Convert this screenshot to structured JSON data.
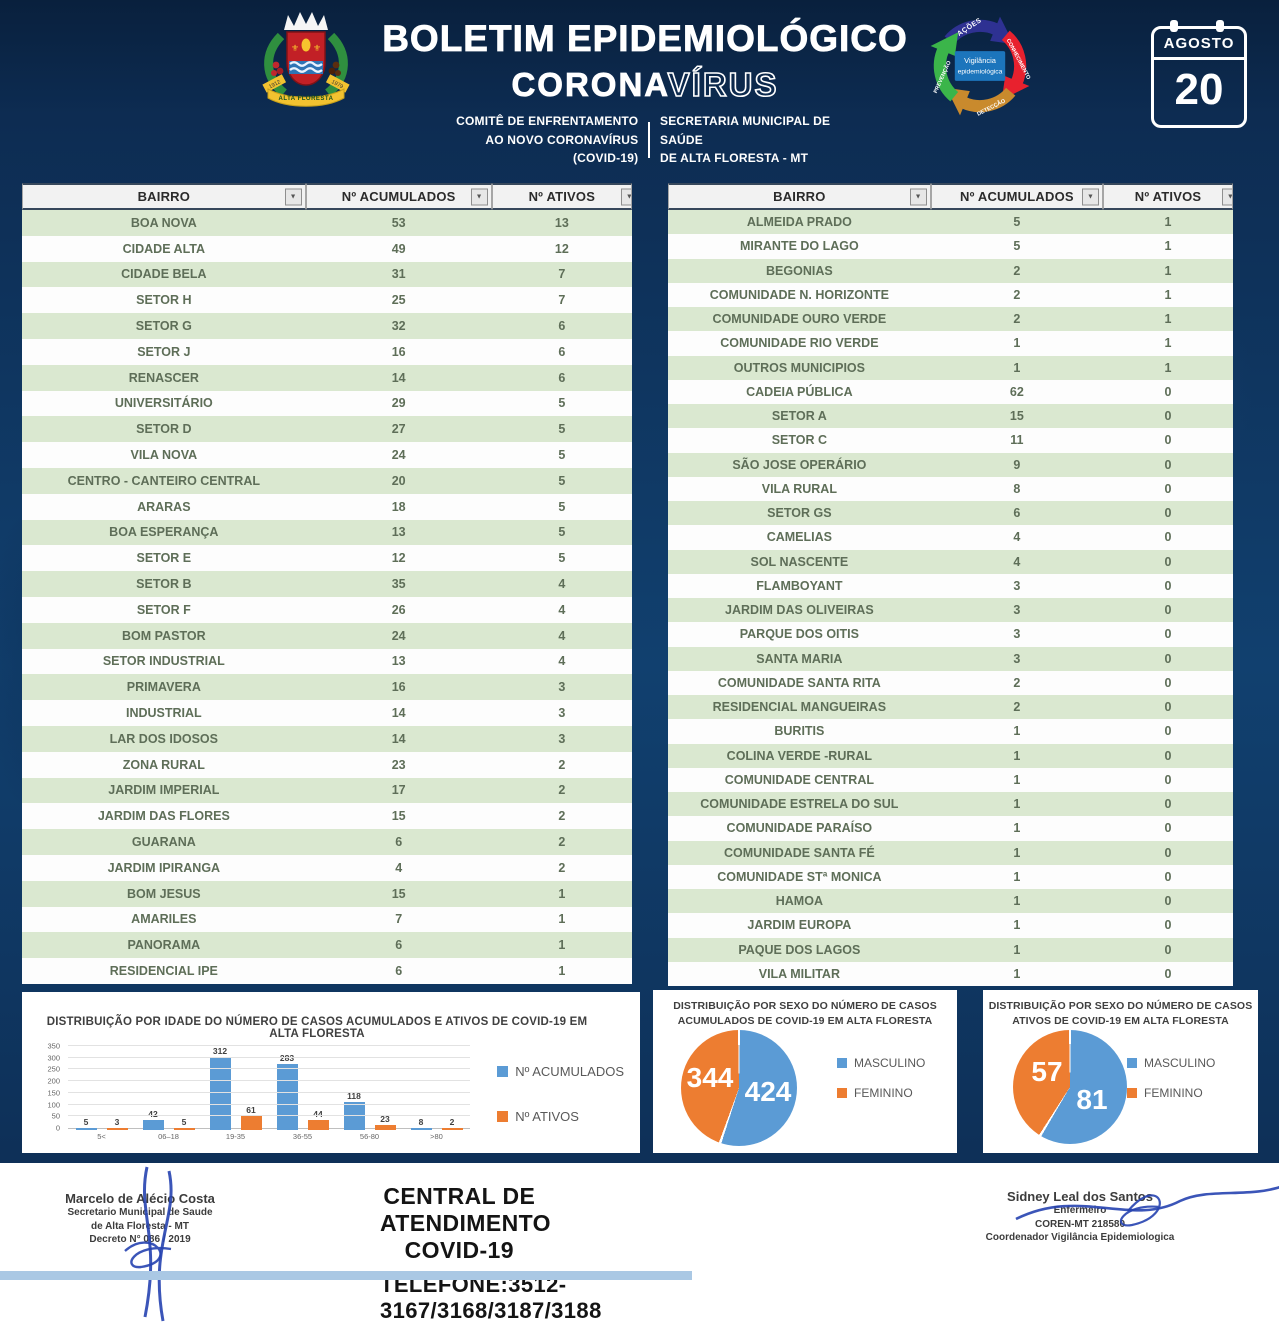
{
  "header": {
    "title": "BOLETIM EPIDEMIOLÓGICO",
    "subtitle_solid": "CORONA",
    "subtitle_outline": "VÍRUS",
    "committee_line1": "COMITÊ DE ENFRENTAMENTO",
    "committee_line2": "AO NOVO CORONAVÍRUS (COVID-19)",
    "secretary_line1": "SECRETARIA MUNICIPAL DE SAÚDE",
    "secretary_line2": "DE ALTA FLORESTA - MT",
    "calendar_month": "AGOSTO",
    "calendar_day": "20",
    "cycle_center_line1": "Vigilância",
    "cycle_center_line2": "epidemiológica",
    "cycle_labels": [
      "AÇÕES",
      "CONHECIMENTO",
      "DETECÇÃO",
      "PREVENÇÃO"
    ],
    "crest_name": "ALTA FLORESTA",
    "crest_year_left": "1912",
    "crest_year_right": "1979"
  },
  "tables": {
    "headers": [
      "BAIRRO",
      "Nº ACUMULADOS",
      "Nº ATIVOS"
    ],
    "left": [
      [
        "BOA NOVA",
        "53",
        "13"
      ],
      [
        "CIDADE ALTA",
        "49",
        "12"
      ],
      [
        "CIDADE BELA",
        "31",
        "7"
      ],
      [
        "SETOR H",
        "25",
        "7"
      ],
      [
        "SETOR G",
        "32",
        "6"
      ],
      [
        "SETOR J",
        "16",
        "6"
      ],
      [
        "RENASCER",
        "14",
        "6"
      ],
      [
        "UNIVERSITÁRIO",
        "29",
        "5"
      ],
      [
        "SETOR D",
        "27",
        "5"
      ],
      [
        "VILA NOVA",
        "24",
        "5"
      ],
      [
        "CENTRO - CANTEIRO CENTRAL",
        "20",
        "5"
      ],
      [
        "ARARAS",
        "18",
        "5"
      ],
      [
        "BOA ESPERANÇA",
        "13",
        "5"
      ],
      [
        "SETOR E",
        "12",
        "5"
      ],
      [
        "SETOR B",
        "35",
        "4"
      ],
      [
        "SETOR F",
        "26",
        "4"
      ],
      [
        "BOM PASTOR",
        "24",
        "4"
      ],
      [
        "SETOR INDUSTRIAL",
        "13",
        "4"
      ],
      [
        "PRIMAVERA",
        "16",
        "3"
      ],
      [
        "INDUSTRIAL",
        "14",
        "3"
      ],
      [
        "LAR DOS IDOSOS",
        "14",
        "3"
      ],
      [
        "ZONA RURAL",
        "23",
        "2"
      ],
      [
        "JARDIM IMPERIAL",
        "17",
        "2"
      ],
      [
        "JARDIM DAS FLORES",
        "15",
        "2"
      ],
      [
        "GUARANA",
        "6",
        "2"
      ],
      [
        "JARDIM IPIRANGA",
        "4",
        "2"
      ],
      [
        "BOM JESUS",
        "15",
        "1"
      ],
      [
        "AMARILES",
        "7",
        "1"
      ],
      [
        "PANORAMA",
        "6",
        "1"
      ],
      [
        "RESIDENCIAL IPE",
        "6",
        "1"
      ]
    ],
    "right": [
      [
        "ALMEIDA PRADO",
        "5",
        "1"
      ],
      [
        "MIRANTE DO LAGO",
        "5",
        "1"
      ],
      [
        "BEGONIAS",
        "2",
        "1"
      ],
      [
        "COMUNIDADE N. HORIZONTE",
        "2",
        "1"
      ],
      [
        "COMUNIDADE OURO VERDE",
        "2",
        "1"
      ],
      [
        "COMUNIDADE RIO VERDE",
        "1",
        "1"
      ],
      [
        "OUTROS MUNICIPIOS",
        "1",
        "1"
      ],
      [
        "CADEIA PÚBLICA",
        "62",
        "0"
      ],
      [
        "SETOR A",
        "15",
        "0"
      ],
      [
        "SETOR C",
        "11",
        "0"
      ],
      [
        "SÃO JOSE OPERÁRIO",
        "9",
        "0"
      ],
      [
        "VILA RURAL",
        "8",
        "0"
      ],
      [
        "SETOR GS",
        "6",
        "0"
      ],
      [
        "CAMELIAS",
        "4",
        "0"
      ],
      [
        "SOL NASCENTE",
        "4",
        "0"
      ],
      [
        "FLAMBOYANT",
        "3",
        "0"
      ],
      [
        "JARDIM DAS OLIVEIRAS",
        "3",
        "0"
      ],
      [
        "PARQUE DOS OITIS",
        "3",
        "0"
      ],
      [
        "SANTA MARIA",
        "3",
        "0"
      ],
      [
        "COMUNIDADE SANTA RITA",
        "2",
        "0"
      ],
      [
        "RESIDENCIAL MANGUEIRAS",
        "2",
        "0"
      ],
      [
        "BURITIS",
        "1",
        "0"
      ],
      [
        "COLINA VERDE -RURAL",
        "1",
        "0"
      ],
      [
        "COMUNIDADE CENTRAL",
        "1",
        "0"
      ],
      [
        "COMUNIDADE ESTRELA DO SUL",
        "1",
        "0"
      ],
      [
        "COMUNIDADE PARAÍSO",
        "1",
        "0"
      ],
      [
        "COMUNIDADE SANTA FÉ",
        "1",
        "0"
      ],
      [
        "COMUNIDADE STª MONICA",
        "1",
        "0"
      ],
      [
        "HAMOA",
        "1",
        "0"
      ],
      [
        "JARDIM EUROPA",
        "1",
        "0"
      ],
      [
        "PAQUE DOS LAGOS",
        "1",
        "0"
      ],
      [
        "VILA MILITAR",
        "1",
        "0"
      ]
    ]
  },
  "chart_data": [
    {
      "type": "bar",
      "title": "DISTRIBUIÇÃO POR IDADE DO NÚMERO DE CASOS ACUMULADOS E ATIVOS DE COVID-19 EM ALTA FLORESTA",
      "categories": [
        "5<",
        "06–18",
        "19-35",
        "36-55",
        "56-80",
        ">80"
      ],
      "series": [
        {
          "name": "Nº ACUMULADOS",
          "color": "#5b9bd5",
          "values": [
            5,
            42,
            312,
            283,
            118,
            8
          ]
        },
        {
          "name": "Nº ATIVOS",
          "color": "#ed7d31",
          "values": [
            3,
            5,
            61,
            44,
            23,
            2
          ]
        }
      ],
      "ylim": [
        0,
        350
      ],
      "ytick_step": 50,
      "grid": true,
      "legend_position": "right"
    },
    {
      "type": "pie",
      "title_line1": "DISTRIBUIÇÃO POR SEXO DO NÚMERO DE CASOS",
      "title_line2": "ACUMULADOS DE COVID-19 EM ALTA FLORESTA",
      "labels": [
        "MASCULINO",
        "FEMININO"
      ],
      "values": [
        424,
        344
      ],
      "colors": [
        "#5b9bd5",
        "#ed7d31"
      ],
      "legend_position": "right"
    },
    {
      "type": "pie",
      "title_line1": "DISTRIBUIÇÃO POR SEXO DO NÚMERO DE CASOS",
      "title_line2": "ATIVOS DE COVID-19 EM ALTA FLORESTA",
      "labels": [
        "MASCULINO",
        "FEMININO"
      ],
      "values": [
        81,
        57
      ],
      "colors": [
        "#5b9bd5",
        "#ed7d31"
      ],
      "legend_position": "right"
    }
  ],
  "footer": {
    "center_line1": "CENTRAL  DE ATENDIMENTO COVID-19",
    "center_line2": "TELEFONE:3512-3167/3168/3187/3188",
    "left_signature": [
      "Marcelo de Alécio Costa",
      "Secretario Municipal de Saude",
      "de Alta Floresta - MT",
      "Decreto N° 086 / 2019"
    ],
    "right_signature": [
      "Sidney Leal dos Santos",
      "Enfermeiro",
      "COREN-MT 218580",
      "Coordenador Vigilância Epidemiologica"
    ]
  },
  "theme": {
    "navy_background": "#0d2c52",
    "table_row_green": "#dae8d0",
    "accumulated_blue": "#5b9bd5",
    "active_orange": "#ed7d31"
  }
}
